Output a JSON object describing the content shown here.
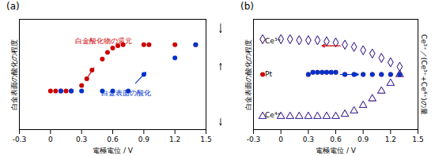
{
  "chart_data": [
    {
      "type": "scatter",
      "title": "(a)",
      "xlabel": "電極電位 / V",
      "ylabel": "白金表面の酸化の程度",
      "xlim": [
        -0.3,
        1.5
      ],
      "ylim": [
        0.0,
        1.0
      ],
      "xticks": [
        -0.3,
        0,
        0.3,
        0.6,
        0.9,
        1.2,
        1.5
      ],
      "yticks": [],
      "tick_labels": "x",
      "series": [
        {
          "color": "#cc0000",
          "marker": "circle",
          "x": [
            0.0,
            0.05,
            0.1,
            0.15,
            0.2,
            0.3,
            0.35,
            0.4,
            0.5,
            0.55,
            0.6,
            0.65,
            0.7,
            0.9,
            0.95,
            1.2,
            1.4
          ],
          "values": [
            0.35,
            0.35,
            0.35,
            0.35,
            0.35,
            0.4,
            0.46,
            0.54,
            0.64,
            0.7,
            0.74,
            0.76,
            0.77,
            0.77,
            0.77,
            0.77,
            0.77
          ]
        },
        {
          "color": "#0033cc",
          "marker": "circle",
          "x": [
            0.1,
            0.2,
            0.3,
            0.5,
            0.6,
            0.75,
            0.9,
            1.2,
            1.4
          ],
          "values": [
            0.35,
            0.35,
            0.35,
            0.35,
            0.35,
            0.35,
            0.5,
            0.65,
            0.77
          ]
        }
      ],
      "annotations": [
        {
          "text": "白金酸化物の還元",
          "color": "#cc0000",
          "arrow_from": [
            0.42,
            0.56
          ],
          "arrow_to": [
            0.34,
            0.45
          ]
        },
        {
          "text": "白金表面の酸化",
          "color": "#0033cc",
          "arrow_from": [
            0.82,
            0.42
          ],
          "arrow_to": [
            0.92,
            0.52
          ]
        }
      ]
    },
    {
      "type": "scatter",
      "title": "(b)",
      "xlabel": "電極電位 / V",
      "ylabel": "白金表面の酸化の程度",
      "y2label": "Ce³⁺／(Ce³⁺+Ce⁴⁺)の量",
      "xlim": [
        -0.3,
        1.5
      ],
      "ylim": [
        0.0,
        1.0
      ],
      "xticks": [
        -0.3,
        0,
        0.3,
        0.6,
        0.9,
        1.2,
        1.5
      ],
      "yticks": [],
      "tick_labels": "x",
      "series": [
        {
          "color": "#cc0000",
          "marker": "diamond",
          "x": [
            -0.2,
            0.0,
            0.1,
            0.2,
            0.3,
            0.4,
            0.5,
            0.6,
            0.7,
            0.8,
            0.9,
            1.0,
            1.1,
            1.2,
            1.3
          ],
          "values": [
            0.82,
            0.82,
            0.82,
            0.81,
            0.81,
            0.81,
            0.8,
            0.79,
            0.77,
            0.75,
            0.72,
            0.69,
            0.65,
            0.61,
            0.57
          ]
        },
        {
          "color": "#0033cc",
          "marker": "diamond",
          "x": [
            -0.2,
            0.0,
            0.1,
            0.2,
            0.3,
            0.4,
            0.5,
            0.6,
            0.7,
            0.8,
            0.9,
            1.0,
            1.1,
            1.2,
            1.3
          ],
          "values": [
            0.82,
            0.82,
            0.82,
            0.81,
            0.81,
            0.81,
            0.8,
            0.79,
            0.77,
            0.75,
            0.72,
            0.69,
            0.65,
            0.61,
            0.57
          ]
        },
        {
          "color": "#cc0000",
          "marker": "circle",
          "x": [
            -0.2,
            0.3,
            0.35,
            0.4,
            0.45,
            0.5,
            0.55,
            0.6,
            0.7,
            0.8,
            0.9,
            1.0,
            1.1,
            1.2,
            1.3
          ],
          "values": [
            0.5,
            0.5,
            0.52,
            0.52,
            0.52,
            0.52,
            0.52,
            0.52,
            0.5,
            0.5,
            0.5,
            0.5,
            0.5,
            0.5,
            0.5
          ]
        },
        {
          "color": "#0033cc",
          "marker": "circle",
          "x": [
            0.3,
            0.35,
            0.4,
            0.45,
            0.5,
            0.55,
            0.6,
            0.7,
            0.8,
            0.9,
            1.0,
            1.1,
            1.2,
            1.3
          ],
          "values": [
            0.5,
            0.52,
            0.52,
            0.52,
            0.52,
            0.52,
            0.52,
            0.5,
            0.5,
            0.5,
            0.5,
            0.5,
            0.5,
            0.5
          ]
        },
        {
          "color": "#cc0000",
          "marker": "triangle",
          "x": [
            -0.2,
            0.0,
            0.1,
            0.2,
            0.3,
            0.4,
            0.5,
            0.6,
            0.7,
            0.8,
            0.9,
            1.0,
            1.1,
            1.2,
            1.3
          ],
          "values": [
            0.12,
            0.12,
            0.12,
            0.12,
            0.12,
            0.12,
            0.12,
            0.12,
            0.14,
            0.17,
            0.22,
            0.28,
            0.35,
            0.42,
            0.5
          ]
        },
        {
          "color": "#0033cc",
          "marker": "triangle",
          "x": [
            -0.2,
            0.0,
            0.1,
            0.2,
            0.3,
            0.4,
            0.5,
            0.6,
            0.7,
            0.8,
            0.9,
            1.0,
            1.1,
            1.2,
            1.3
          ],
          "values": [
            0.12,
            0.12,
            0.12,
            0.12,
            0.12,
            0.12,
            0.12,
            0.12,
            0.14,
            0.17,
            0.22,
            0.28,
            0.35,
            0.42,
            0.5
          ]
        }
      ],
      "annotations": [
        {
          "color": "#cc0000",
          "arrow_from": [
            0.65,
            0.76
          ],
          "arrow_to": [
            0.45,
            0.76
          ]
        },
        {
          "color": "#0033cc",
          "arrow_from": [
            0.65,
            0.5
          ],
          "arrow_to": [
            0.85,
            0.5
          ]
        },
        {
          "text": "Ce³⁺"
        },
        {
          "text": "Pt"
        },
        {
          "text": "Ce⁴⁺"
        }
      ]
    }
  ]
}
